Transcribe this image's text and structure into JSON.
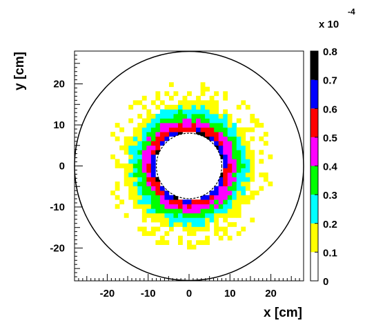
{
  "chart_data": {
    "type": "heatmap",
    "title": "",
    "xlabel": "x [cm]",
    "ylabel": "y [cm]",
    "xlim": [
      -28,
      28
    ],
    "ylim": [
      -28,
      28
    ],
    "x_ticks": [
      -20,
      -10,
      0,
      10,
      20
    ],
    "y_ticks": [
      -20,
      -10,
      0,
      10,
      20
    ],
    "x_tick_labels": [
      "-20",
      "-10",
      "0",
      "10",
      "20"
    ],
    "y_tick_labels": [
      "-20",
      "-10",
      "0",
      "10",
      "20"
    ],
    "grid": false,
    "colorbar": {
      "exponent_label": "x 10",
      "exponent_value": "-4",
      "range": [
        0,
        0.8
      ],
      "tick_values": [
        0,
        0.1,
        0.2,
        0.3,
        0.4,
        0.5,
        0.6,
        0.7,
        0.8
      ],
      "tick_labels": [
        "0",
        "0.1",
        "0.2",
        "0.3",
        "0.4",
        "0.5",
        "0.6",
        "0.7",
        "0.8"
      ],
      "colors": [
        "#ffffff",
        "#ffff00",
        "#00ffff",
        "#00ff00",
        "#ff00ff",
        "#ff0000",
        "#0000ff",
        "#000000"
      ]
    },
    "outer_circle_radius": 28,
    "inner_hole_radius": 8,
    "radial_profile": {
      "radius": [
        8.0,
        8.6,
        9.4,
        10.6,
        12.0,
        13.4,
        15.2,
        17.2,
        19.0,
        22.0
      ],
      "value": [
        0.75,
        0.65,
        0.55,
        0.45,
        0.35,
        0.25,
        0.15,
        0.05,
        0.02,
        0.0
      ]
    }
  }
}
